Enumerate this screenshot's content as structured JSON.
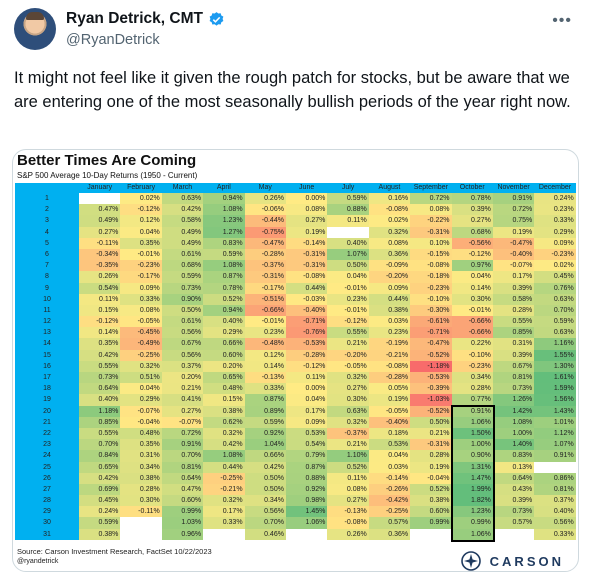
{
  "tweet": {
    "display_name": "Ryan Detrick, CMT",
    "handle": "@RyanDetrick",
    "text": "It might not feel like it given the rough patch for stocks, but be aware that we are entering one of the most seasonally bullish periods of the year right now.",
    "avatar_icon": "profile-photo",
    "verified_icon": "verified-badge-icon",
    "more_icon": "more-options-icon"
  },
  "chart": {
    "title": "Better Times Are Coming",
    "subtitle": "S&P 500 Average 10-Day Returns (1950 - Current)",
    "source": "Source: Carson Investment Research, FactSet 10/22/2023",
    "credit": "@ryandetrick",
    "brand": "CARSON",
    "colors": {
      "header": "#00b0f0",
      "positive_max": "#63be7b",
      "negative_max": "#f8696b",
      "neutral": "#ffeb84"
    }
  },
  "chart_data": {
    "type": "heatmap",
    "title": "Better Times Are Coming",
    "subtitle": "S&P 500 Average 10-Day Returns (1950 - Current)",
    "columns": [
      "January",
      "February",
      "March",
      "April",
      "May",
      "June",
      "July",
      "August",
      "September",
      "October",
      "November",
      "December"
    ],
    "rows": [
      {
        "day": "1",
        "values": [
          "",
          "0.02%",
          "0.63%",
          "0.94%",
          "0.26%",
          "0.00%",
          "0.59%",
          "0.16%",
          "0.72%",
          "0.78%",
          "0.91%",
          "0.24%"
        ]
      },
      {
        "day": "2",
        "values": [
          "0.47%",
          "-0.12%",
          "0.42%",
          "1.08%",
          "-0.06%",
          "0.08%",
          "0.88%",
          "-0.08%",
          "0.08%",
          "0.39%",
          "0.72%",
          "0.23%"
        ]
      },
      {
        "day": "3",
        "values": [
          "0.49%",
          "0.12%",
          "0.58%",
          "1.23%",
          "-0.44%",
          "0.27%",
          "0.11%",
          "0.02%",
          "-0.22%",
          "0.27%",
          "0.75%",
          "0.33%"
        ]
      },
      {
        "day": "4",
        "values": [
          "0.27%",
          "0.04%",
          "0.49%",
          "1.27%",
          "-0.75%",
          "0.19%",
          "",
          "0.32%",
          "-0.31%",
          "0.68%",
          "0.19%",
          "0.29%"
        ]
      },
      {
        "day": "5",
        "values": [
          "-0.11%",
          "0.35%",
          "0.49%",
          "0.83%",
          "-0.47%",
          "-0.14%",
          "0.40%",
          "0.08%",
          "0.10%",
          "-0.56%",
          "-0.47%",
          "0.09%"
        ]
      },
      {
        "day": "6",
        "values": [
          "-0.34%",
          "-0.01%",
          "0.61%",
          "0.59%",
          "-0.28%",
          "-0.31%",
          "1.07%",
          "0.36%",
          "-0.15%",
          "-0.12%",
          "-0.40%",
          "-0.23%"
        ]
      },
      {
        "day": "7",
        "values": [
          "-0.35%",
          "-0.23%",
          "0.68%",
          "1.08%",
          "-0.37%",
          "-0.31%",
          "0.50%",
          "-0.09%",
          "-0.08%",
          "0.97%",
          "-0.07%",
          "0.02%"
        ]
      },
      {
        "day": "8",
        "values": [
          "0.26%",
          "-0.17%",
          "0.59%",
          "0.87%",
          "-0.31%",
          "-0.08%",
          "0.04%",
          "-0.20%",
          "-0.18%",
          "0.04%",
          "0.17%",
          "0.45%"
        ]
      },
      {
        "day": "9",
        "values": [
          "0.54%",
          "0.09%",
          "0.73%",
          "0.78%",
          "-0.17%",
          "0.44%",
          "-0.01%",
          "0.09%",
          "-0.23%",
          "0.14%",
          "0.39%",
          "0.76%"
        ]
      },
      {
        "day": "10",
        "values": [
          "0.11%",
          "0.33%",
          "0.90%",
          "0.52%",
          "-0.51%",
          "-0.03%",
          "0.23%",
          "0.44%",
          "-0.10%",
          "0.30%",
          "0.58%",
          "0.63%"
        ]
      },
      {
        "day": "11",
        "values": [
          "0.15%",
          "0.08%",
          "0.50%",
          "0.94%",
          "-0.66%",
          "-0.40%",
          "-0.01%",
          "0.38%",
          "-0.30%",
          "-0.01%",
          "0.28%",
          "0.70%"
        ]
      },
      {
        "day": "12",
        "values": [
          "-0.12%",
          "-0.05%",
          "0.61%",
          "0.40%",
          "-0.01%",
          "-0.71%",
          "-0.12%",
          "0.03%",
          "-0.61%",
          "-0.66%",
          "0.55%",
          "0.59%"
        ]
      },
      {
        "day": "13",
        "values": [
          "0.14%",
          "-0.45%",
          "0.56%",
          "0.29%",
          "0.23%",
          "-0.76%",
          "0.55%",
          "0.23%",
          "-0.71%",
          "-0.66%",
          "0.85%",
          "0.63%"
        ]
      },
      {
        "day": "14",
        "values": [
          "0.35%",
          "-0.49%",
          "0.67%",
          "0.66%",
          "-0.48%",
          "-0.53%",
          "0.21%",
          "-0.19%",
          "-0.47%",
          "0.22%",
          "0.31%",
          "1.16%"
        ]
      },
      {
        "day": "15",
        "values": [
          "0.42%",
          "-0.25%",
          "0.56%",
          "0.60%",
          "0.12%",
          "-0.28%",
          "-0.20%",
          "-0.21%",
          "-0.52%",
          "-0.10%",
          "0.39%",
          "1.55%"
        ]
      },
      {
        "day": "16",
        "values": [
          "0.55%",
          "0.32%",
          "0.37%",
          "0.20%",
          "0.14%",
          "-0.12%",
          "-0.05%",
          "-0.08%",
          "-1.18%",
          "-0.23%",
          "0.67%",
          "1.30%"
        ]
      },
      {
        "day": "17",
        "values": [
          "0.73%",
          "0.51%",
          "0.20%",
          "0.65%",
          "-0.13%",
          "0.11%",
          "0.32%",
          "-0.28%",
          "-0.53%",
          "0.34%",
          "0.81%",
          "1.61%"
        ]
      },
      {
        "day": "18",
        "values": [
          "0.64%",
          "0.04%",
          "0.21%",
          "0.48%",
          "0.33%",
          "0.00%",
          "0.27%",
          "0.05%",
          "-0.39%",
          "0.28%",
          "0.73%",
          "1.59%"
        ]
      },
      {
        "day": "19",
        "values": [
          "0.40%",
          "0.29%",
          "0.41%",
          "0.15%",
          "0.87%",
          "0.04%",
          "0.30%",
          "0.19%",
          "-1.03%",
          "0.77%",
          "1.26%",
          "1.56%"
        ]
      },
      {
        "day": "20",
        "values": [
          "1.18%",
          "-0.07%",
          "0.27%",
          "0.38%",
          "0.89%",
          "0.17%",
          "0.63%",
          "-0.05%",
          "-0.52%",
          "0.91%",
          "1.42%",
          "1.43%"
        ]
      },
      {
        "day": "21",
        "values": [
          "0.85%",
          "-0.04%",
          "-0.07%",
          "0.62%",
          "0.59%",
          "0.09%",
          "0.32%",
          "-0.40%",
          "0.50%",
          "1.06%",
          "1.08%",
          "1.01%"
        ]
      },
      {
        "day": "22",
        "values": [
          "0.55%",
          "0.48%",
          "0.72%",
          "0.32%",
          "0.92%",
          "0.53%",
          "-0.37%",
          "0.18%",
          "0.21%",
          "1.50%",
          "1.00%",
          "1.12%"
        ]
      },
      {
        "day": "23",
        "values": [
          "0.70%",
          "0.35%",
          "0.91%",
          "0.42%",
          "1.04%",
          "0.54%",
          "0.21%",
          "0.53%",
          "-0.31%",
          "1.00%",
          "1.40%",
          "1.07%"
        ]
      },
      {
        "day": "24",
        "values": [
          "0.84%",
          "0.31%",
          "0.70%",
          "1.08%",
          "0.66%",
          "0.79%",
          "1.10%",
          "0.04%",
          "0.28%",
          "0.90%",
          "0.83%",
          "0.91%"
        ]
      },
      {
        "day": "25",
        "values": [
          "0.65%",
          "0.34%",
          "0.81%",
          "0.44%",
          "0.42%",
          "0.87%",
          "0.52%",
          "0.03%",
          "0.19%",
          "1.31%",
          "0.13%",
          ""
        ]
      },
      {
        "day": "26",
        "values": [
          "0.42%",
          "0.38%",
          "0.64%",
          "-0.25%",
          "0.50%",
          "0.88%",
          "0.11%",
          "-0.14%",
          "-0.04%",
          "1.47%",
          "0.64%",
          "0.86%"
        ]
      },
      {
        "day": "27",
        "values": [
          "0.69%",
          "0.28%",
          "0.47%",
          "-0.21%",
          "0.50%",
          "0.92%",
          "0.08%",
          "-0.26%",
          "0.52%",
          "1.99%",
          "0.43%",
          "0.81%"
        ]
      },
      {
        "day": "28",
        "values": [
          "0.45%",
          "0.30%",
          "0.60%",
          "0.32%",
          "0.34%",
          "0.98%",
          "0.27%",
          "-0.42%",
          "0.38%",
          "1.82%",
          "0.39%",
          "0.37%"
        ]
      },
      {
        "day": "29",
        "values": [
          "0.24%",
          "-0.11%",
          "0.99%",
          "0.17%",
          "0.56%",
          "1.45%",
          "-0.13%",
          "-0.25%",
          "0.60%",
          "1.23%",
          "0.73%",
          "0.40%"
        ]
      },
      {
        "day": "30",
        "values": [
          "0.59%",
          "",
          "1.03%",
          "0.33%",
          "0.70%",
          "1.06%",
          "-0.08%",
          "0.57%",
          "0.99%",
          "0.99%",
          "0.57%",
          "0.56%"
        ]
      },
      {
        "day": "31",
        "values": [
          "0.38%",
          "",
          "0.96%",
          "",
          "0.46%",
          "",
          "0.26%",
          "0.36%",
          "",
          "1.06%",
          "",
          "0.33%"
        ]
      }
    ],
    "highlight": {
      "column": "October",
      "from_day": "20",
      "to_day": "31"
    }
  }
}
